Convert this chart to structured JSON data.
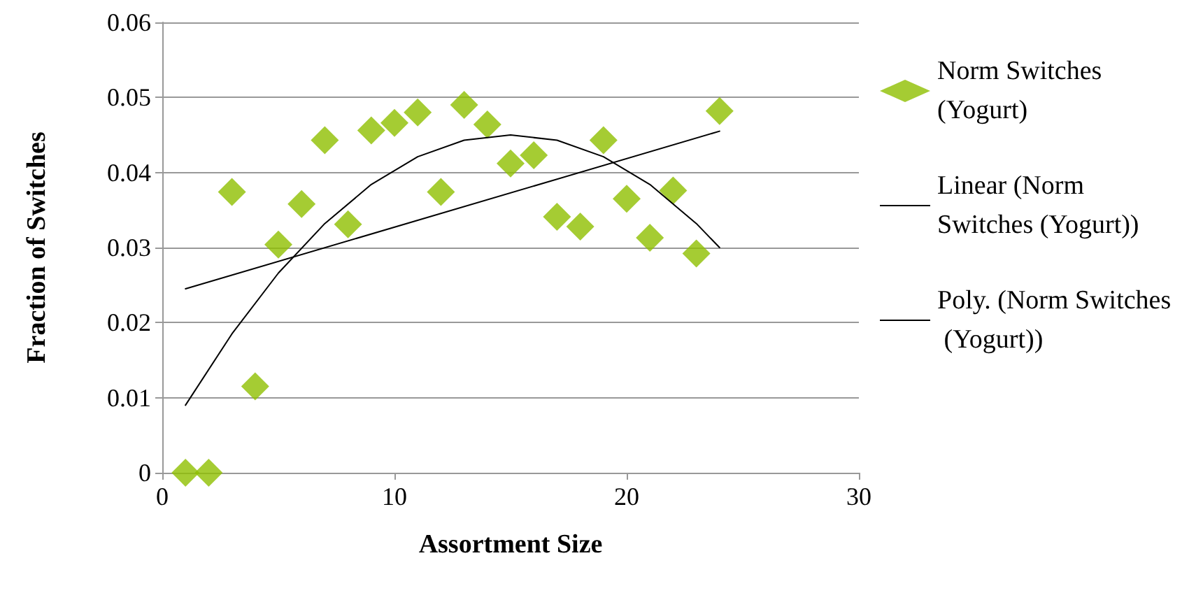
{
  "chart_data": {
    "type": "scatter",
    "xlabel": "Assortment Size",
    "ylabel": "Fraction of Switches",
    "xlim": [
      0,
      30
    ],
    "xticks": [
      0,
      10,
      20,
      30
    ],
    "ylim": [
      0,
      0.06
    ],
    "yticks": [
      0,
      0.01,
      0.02,
      0.03,
      0.04,
      0.05,
      0.06
    ],
    "grid": "y",
    "legend": "right",
    "marker": "diamond",
    "series": [
      {
        "name": "Norm Switches (Yogurt)",
        "color": "#8fbf00",
        "x": [
          1,
          2,
          3,
          4,
          5,
          6,
          7,
          8,
          9,
          10,
          11,
          12,
          13,
          14,
          15,
          16,
          17,
          18,
          19,
          20,
          21,
          22,
          23,
          24
        ],
        "values": [
          0,
          0,
          0.0374,
          0.0115,
          0.0304,
          0.0358,
          0.0443,
          0.0331,
          0.0456,
          0.0466,
          0.048,
          0.0374,
          0.049,
          0.0464,
          0.0412,
          0.0423,
          0.0341,
          0.0328,
          0.0443,
          0.0365,
          0.0313,
          0.0376,
          0.0292,
          0.0482
        ]
      },
      {
        "name": "Linear (Norm Switches (Yogurt))",
        "type": "line",
        "color": "#000000",
        "marker": "none",
        "x": [
          1,
          24
        ],
        "values": [
          0.0245,
          0.0455
        ]
      },
      {
        "name": "Poly. (Norm Switches (Yogurt))",
        "type": "line",
        "color": "#000000",
        "marker": "none",
        "x": [
          1,
          3,
          5,
          7,
          9,
          11,
          13,
          15,
          17,
          19,
          21,
          23,
          24
        ],
        "values": [
          0.009,
          0.0185,
          0.0266,
          0.0332,
          0.0384,
          0.0421,
          0.0443,
          0.045,
          0.0443,
          0.0421,
          0.0384,
          0.0332,
          0.03
        ]
      }
    ]
  }
}
